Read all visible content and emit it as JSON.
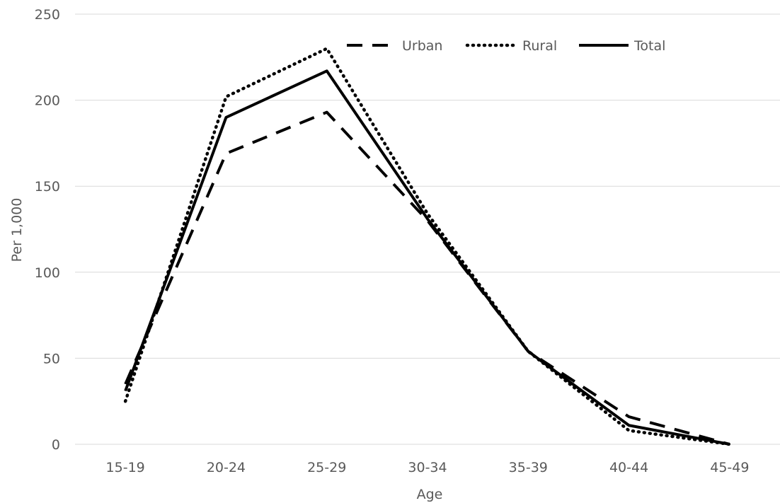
{
  "chart_data": {
    "type": "line",
    "title": "",
    "xlabel": "Age",
    "ylabel": "Per 1,000",
    "categories": [
      "15-19",
      "20-24",
      "25-29",
      "30-34",
      "35-39",
      "40-44",
      "45-49"
    ],
    "ylim": [
      0,
      250
    ],
    "yticks": [
      0,
      50,
      100,
      150,
      200,
      250
    ],
    "grid": true,
    "legend_position": "top-right",
    "series": [
      {
        "name": "Urban",
        "style": "dashed",
        "color": "#000000",
        "values": [
          35,
          169,
          193,
          130,
          54,
          16,
          0
        ]
      },
      {
        "name": "Rural",
        "style": "dotted",
        "color": "#000000",
        "values": [
          25,
          202,
          230,
          134,
          54,
          8,
          0
        ]
      },
      {
        "name": "Total",
        "style": "solid",
        "color": "#000000",
        "values": [
          31,
          190,
          217,
          131,
          54,
          11,
          0
        ]
      }
    ]
  }
}
